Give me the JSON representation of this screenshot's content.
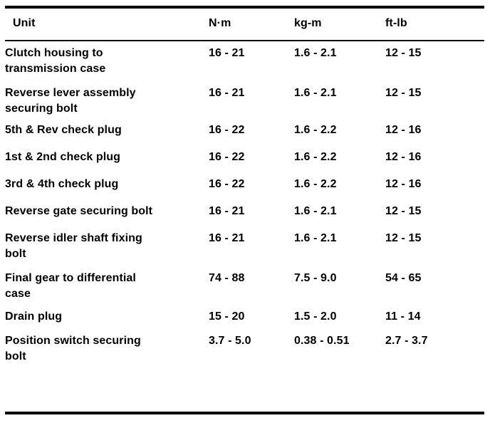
{
  "table": {
    "headers": {
      "unit": "Unit",
      "nm": "N·m",
      "kgm": "kg-m",
      "ftlb": "ft-lb"
    },
    "rows": [
      {
        "unit_line1": "Clutch housing to",
        "unit_line2": "transmission case",
        "nm": "16 - 21",
        "kgm": "1.6 - 2.1",
        "ftlb": "12 - 15"
      },
      {
        "unit_line1": "Reverse lever assembly",
        "unit_line2": "securing bolt",
        "nm": "16 - 21",
        "kgm": "1.6 - 2.1",
        "ftlb": "12 - 15"
      },
      {
        "unit_line1": "5th & Rev  check plug",
        "unit_line2": "",
        "nm": "16 - 22",
        "kgm": "1.6 - 2.2",
        "ftlb": "12 - 16"
      },
      {
        "unit_line1": "1st & 2nd check plug",
        "unit_line2": "",
        "nm": "16 - 22",
        "kgm": "1.6 - 2.2",
        "ftlb": "12 - 16"
      },
      {
        "unit_line1": "3rd & 4th check plug",
        "unit_line2": "",
        "nm": "16 - 22",
        "kgm": "1.6 - 2.2",
        "ftlb": "12 - 16"
      },
      {
        "unit_line1": "Reverse gate securing bolt",
        "unit_line2": "",
        "nm": "16 - 21",
        "kgm": "1.6 - 2.1",
        "ftlb": "12 - 15"
      },
      {
        "unit_line1": "Reverse idler shaft fixing",
        "unit_line2": "bolt",
        "nm": "16 - 21",
        "kgm": "1.6 - 2.1",
        "ftlb": "12 - 15"
      },
      {
        "unit_line1": "Final gear to differential",
        "unit_line2": "case",
        "nm": "74 - 88",
        "kgm": "7.5 - 9.0",
        "ftlb": "54 - 65"
      },
      {
        "unit_line1": "Drain plug",
        "unit_line2": "",
        "nm": "15 - 20",
        "kgm": "1.5 - 2.0",
        "ftlb": "11 - 14"
      },
      {
        "unit_line1": "Position switch securing",
        "unit_line2": "bolt",
        "nm": "3.7 - 5.0",
        "kgm": "0.38 - 0.51",
        "ftlb": "2.7 - 3.7"
      }
    ]
  }
}
